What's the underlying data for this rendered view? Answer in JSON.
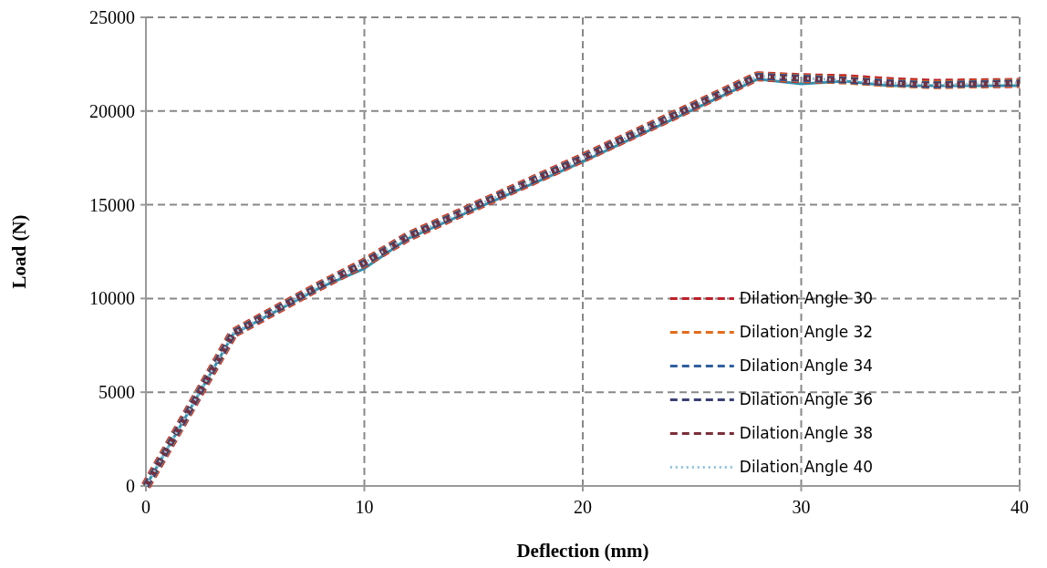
{
  "chart_data": {
    "type": "line",
    "xlabel": "Deflection (mm)",
    "ylabel": "Load (N)",
    "xlim": [
      0,
      40
    ],
    "xticks": [
      0,
      10,
      20,
      30,
      40
    ],
    "ylim": [
      0,
      25000
    ],
    "yticks": [
      0,
      5000,
      10000,
      15000,
      20000,
      25000
    ],
    "grid": true,
    "legend": "right",
    "marker": "none",
    "x": [
      0,
      4,
      8,
      10,
      12,
      20,
      28,
      30,
      32,
      34,
      36,
      40
    ],
    "series": [
      {
        "color": "#2e93b0",
        "line_style": "solid",
        "values": [
          0,
          8100,
          10600,
          11600,
          13200,
          17300,
          21700,
          21450,
          21600,
          21350,
          21350,
          21350
        ]
      },
      {
        "name": "Dilation Angle 30",
        "color": "#c0202a",
        "line_style": "dashed",
        "values": [
          0,
          8150,
          10700,
          11900,
          13300,
          17500,
          21850,
          21750,
          21700,
          21550,
          21450,
          21500
        ]
      },
      {
        "name": "Dilation Angle 32",
        "color": "#e36c1a",
        "line_style": "dashed",
        "values": [
          0,
          8150,
          10700,
          11900,
          13300,
          17500,
          21850,
          21750,
          21650,
          21500,
          21400,
          21500
        ]
      },
      {
        "name": "Dilation Angle 34",
        "color": "#2f5f9e",
        "line_style": "dashed",
        "values": [
          0,
          8150,
          10700,
          11900,
          13300,
          17500,
          21850,
          21750,
          21650,
          21500,
          21400,
          21500
        ]
      },
      {
        "name": "Dilation Angle 36",
        "color": "#3a3f73",
        "line_style": "dashed",
        "values": [
          0,
          8150,
          10700,
          11900,
          13300,
          17500,
          21850,
          21750,
          21650,
          21500,
          21400,
          21500
        ]
      },
      {
        "name": "Dilation Angle 38",
        "color": "#7a2e3a",
        "line_style": "dashed",
        "values": [
          0,
          8150,
          10700,
          11900,
          13300,
          17500,
          21850,
          21750,
          21650,
          21500,
          21400,
          21500
        ]
      },
      {
        "name": "Dilation Angle 40",
        "color": "#8cc3dc",
        "line_style": "dotted",
        "values": [
          0,
          8150,
          10700,
          11900,
          13300,
          17500,
          21850,
          21750,
          21650,
          21500,
          21400,
          21500
        ]
      }
    ]
  }
}
